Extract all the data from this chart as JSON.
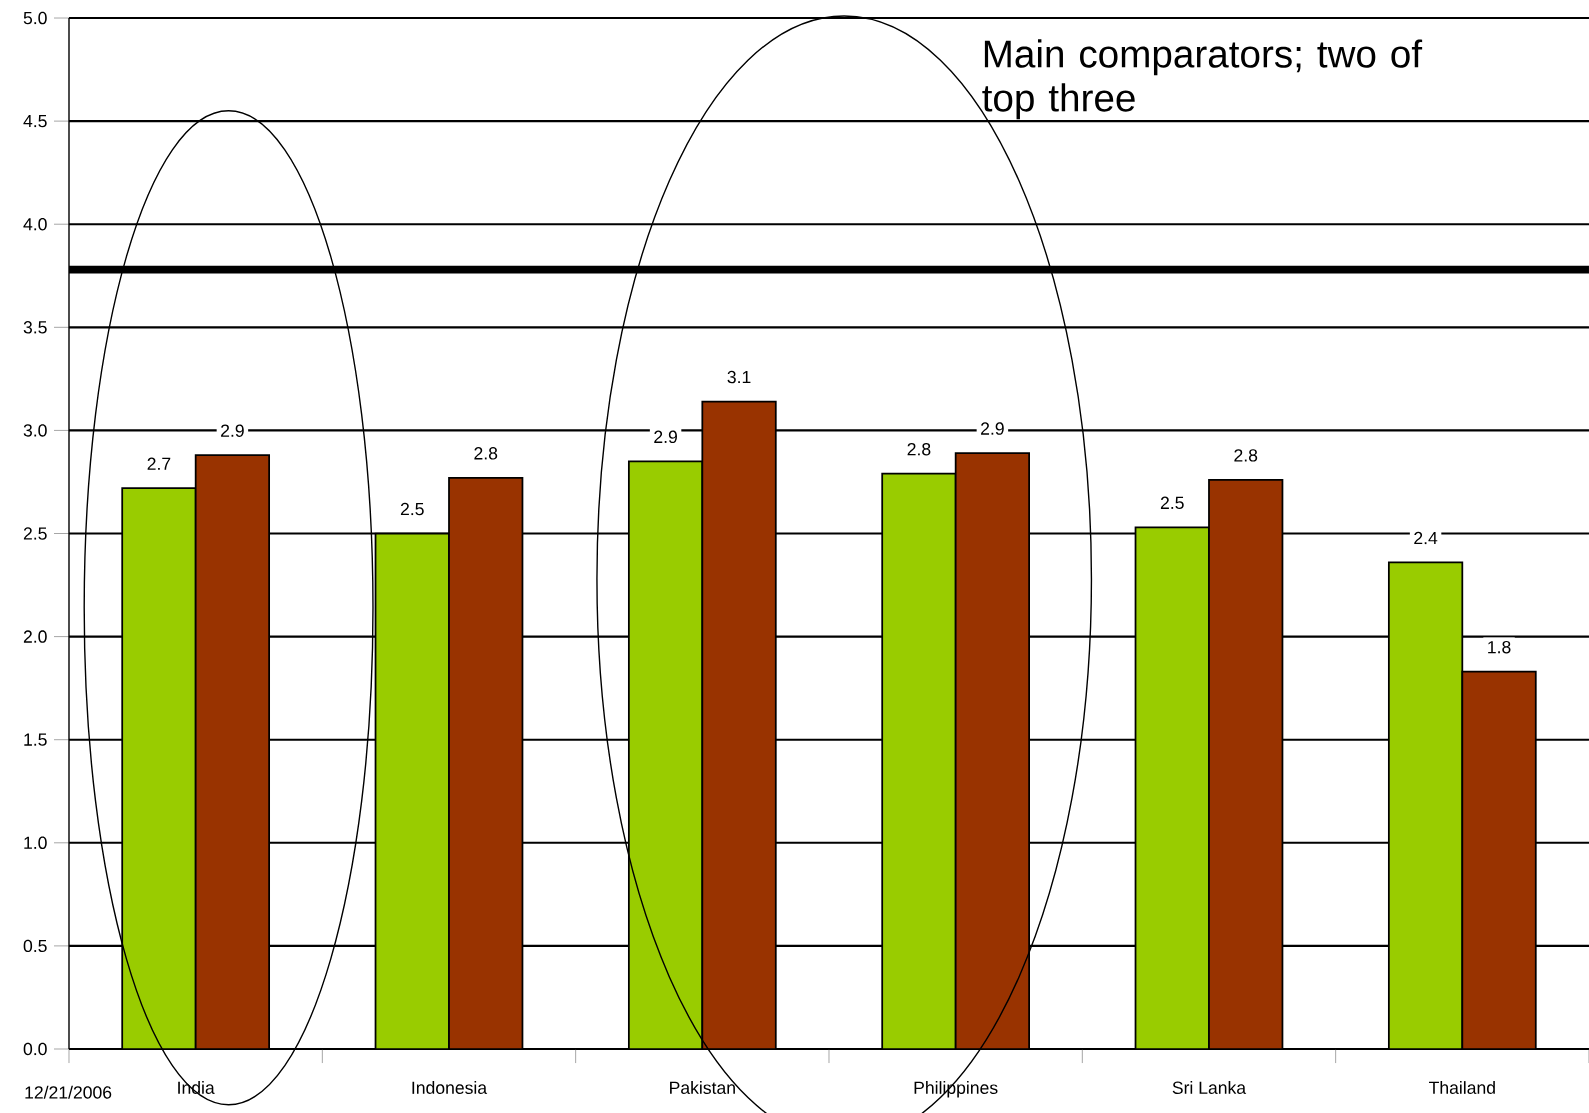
{
  "chart_data": {
    "type": "bar",
    "categories": [
      "India",
      "Indonesia",
      "Pakistan",
      "Philippines",
      "Sri Lanka",
      "Thailand"
    ],
    "series": [
      {
        "color": "#99cc00",
        "values": [
          2.72,
          2.5,
          2.85,
          2.79,
          2.53,
          2.36
        ],
        "value_labels": [
          "2.7",
          "2.5",
          "2.9",
          "2.8",
          "2.5",
          "2.4"
        ]
      },
      {
        "color": "#993300",
        "values": [
          2.88,
          2.77,
          3.14,
          2.89,
          2.76,
          1.83
        ],
        "value_labels": [
          "2.9",
          "2.8",
          "3.1",
          "2.9",
          "2.8",
          "1.8"
        ]
      }
    ],
    "ylim": [
      0,
      5
    ],
    "yticks": [
      {
        "value": 0,
        "label": "0.0"
      },
      {
        "value": 0.5,
        "label": "0.5"
      },
      {
        "value": 1,
        "label": "1.0"
      },
      {
        "value": 1.5,
        "label": "1.5"
      },
      {
        "value": 2,
        "label": "2.0"
      },
      {
        "value": 2.5,
        "label": "2.5"
      },
      {
        "value": 3,
        "label": "3.0"
      },
      {
        "value": 3.5,
        "label": "3.5"
      },
      {
        "value": 4,
        "label": "4.0"
      },
      {
        "value": 4.5,
        "label": "4.5"
      },
      {
        "value": 5,
        "label": "5.0"
      }
    ],
    "grid": "y",
    "ref_lines": [
      {
        "axis": "y",
        "value": 3.78,
        "color": "#000000"
      }
    ],
    "annotations": [
      "Main comparators; two of top three",
      "12/21/2006"
    ]
  }
}
